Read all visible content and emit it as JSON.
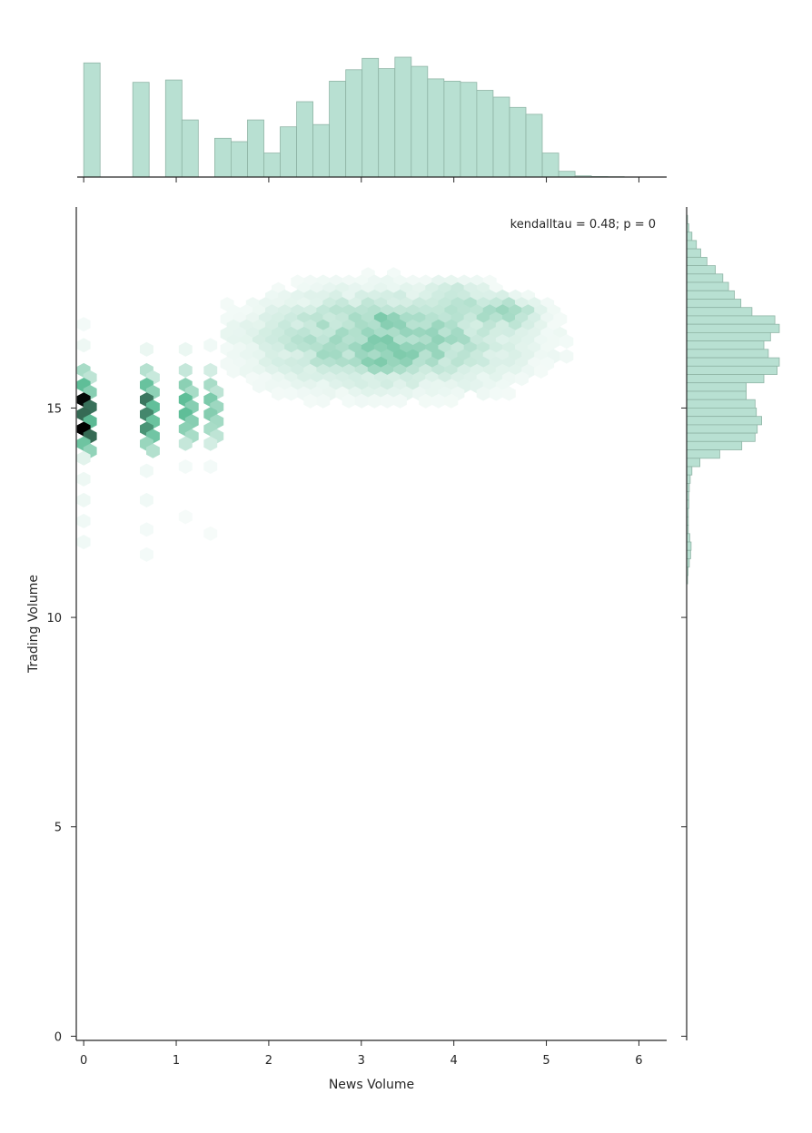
{
  "chart_data": {
    "type": "hexbin-jointplot",
    "xlabel": "News Volume",
    "ylabel": "Trading Volume",
    "annotation": "kendalltau = 0.48; p = 0",
    "xlim": [
      -0.08,
      6.3
    ],
    "ylim": [
      -0.1,
      19.8
    ],
    "xticks": [
      0,
      1,
      2,
      3,
      4,
      5,
      6
    ],
    "yticks": [
      0,
      5,
      10,
      15
    ],
    "colors": {
      "hex_base": "#5fbe98",
      "hex_dark": "#000000",
      "hist_fill": "#b8e0d2",
      "hist_edge": "#8fb5a6",
      "axis": "#262626"
    },
    "x_marginal": {
      "bin_edges": [
        0.0,
        0.177,
        0.354,
        0.531,
        0.708,
        0.885,
        1.062,
        1.239,
        1.416,
        1.593,
        1.77,
        1.947,
        2.124,
        2.301,
        2.478,
        2.655,
        2.832,
        3.009,
        3.186,
        3.363,
        3.54,
        3.717,
        3.894,
        4.071,
        4.248,
        4.425,
        4.602,
        4.779,
        4.956,
        5.133,
        5.31,
        5.487,
        5.664,
        5.841
      ],
      "counts": [
        100,
        0,
        0,
        83,
        0,
        85,
        50,
        0,
        34,
        31,
        50,
        21,
        44,
        66,
        46,
        84,
        94,
        104,
        95,
        105,
        97,
        86,
        84,
        83,
        76,
        70,
        61,
        55,
        21,
        5,
        1,
        0.5,
        0.3
      ]
    },
    "y_marginal": {
      "bins": [
        [
          19.4,
          0.2
        ],
        [
          19.2,
          0.5
        ],
        [
          19.0,
          1.2
        ],
        [
          18.8,
          2.2
        ],
        [
          18.6,
          3.2
        ],
        [
          18.4,
          4.6
        ],
        [
          18.2,
          6.5
        ],
        [
          18.0,
          8.2
        ],
        [
          17.8,
          9.5
        ],
        [
          17.6,
          10.8
        ],
        [
          17.4,
          12.3
        ],
        [
          17.2,
          14.8
        ],
        [
          17.0,
          20.0
        ],
        [
          16.8,
          21.0
        ],
        [
          16.6,
          19.0
        ],
        [
          16.4,
          17.5
        ],
        [
          16.2,
          18.5
        ],
        [
          16.0,
          21.0
        ],
        [
          15.8,
          20.5
        ],
        [
          15.6,
          17.5
        ],
        [
          15.4,
          13.5
        ],
        [
          15.2,
          13.5
        ],
        [
          15.0,
          15.5
        ],
        [
          14.8,
          15.8
        ],
        [
          14.6,
          17.0
        ],
        [
          14.4,
          16.0
        ],
        [
          14.2,
          15.5
        ],
        [
          14.0,
          12.5
        ],
        [
          13.8,
          7.5
        ],
        [
          13.6,
          3.0
        ],
        [
          13.4,
          1.2
        ],
        [
          13.2,
          0.8
        ],
        [
          13.0,
          0.6
        ],
        [
          12.8,
          0.5
        ],
        [
          12.6,
          0.5
        ],
        [
          12.4,
          0.4
        ],
        [
          12.2,
          0.4
        ],
        [
          12.0,
          0.4
        ],
        [
          11.8,
          0.7
        ],
        [
          11.6,
          1.0
        ],
        [
          11.4,
          0.9
        ],
        [
          11.2,
          0.6
        ],
        [
          11.0,
          0.3
        ],
        [
          10.8,
          0.2
        ]
      ]
    },
    "hexbin_columns": [
      {
        "x": 0.0,
        "cells": [
          [
            15.9,
            0.3
          ],
          [
            15.55,
            0.55
          ],
          [
            15.2,
            0.98
          ],
          [
            14.85,
            0.75
          ],
          [
            14.5,
            1.0
          ],
          [
            14.15,
            0.5
          ],
          [
            13.8,
            0.1
          ],
          [
            13.3,
            0.06
          ],
          [
            12.8,
            0.06
          ],
          [
            12.3,
            0.05
          ],
          [
            11.8,
            0.05
          ],
          [
            16.5,
            0.06
          ],
          [
            17.0,
            0.04
          ]
        ]
      },
      {
        "x": 0.68,
        "cells": [
          [
            15.9,
            0.25
          ],
          [
            15.55,
            0.52
          ],
          [
            15.2,
            0.72
          ],
          [
            14.85,
            0.68
          ],
          [
            14.5,
            0.65
          ],
          [
            14.15,
            0.35
          ],
          [
            13.5,
            0.05
          ],
          [
            12.8,
            0.05
          ],
          [
            12.1,
            0.04
          ],
          [
            11.5,
            0.04
          ],
          [
            16.4,
            0.07
          ]
        ]
      },
      {
        "x": 1.1,
        "cells": [
          [
            15.9,
            0.2
          ],
          [
            15.55,
            0.4
          ],
          [
            15.2,
            0.55
          ],
          [
            14.85,
            0.55
          ],
          [
            14.5,
            0.4
          ],
          [
            14.15,
            0.2
          ],
          [
            13.6,
            0.04
          ],
          [
            12.4,
            0.03
          ],
          [
            16.4,
            0.07
          ]
        ]
      },
      {
        "x": 1.37,
        "cells": [
          [
            15.9,
            0.15
          ],
          [
            15.55,
            0.3
          ],
          [
            15.2,
            0.45
          ],
          [
            14.85,
            0.42
          ],
          [
            14.5,
            0.3
          ],
          [
            14.15,
            0.15
          ],
          [
            13.6,
            0.04
          ],
          [
            16.5,
            0.05
          ],
          [
            12.0,
            0.03
          ]
        ]
      }
    ],
    "hexbin_dense": {
      "ellipse": {
        "cx": 3.3,
        "cy": 16.6,
        "rx": 1.4,
        "ry": 1.1
      },
      "peak_density": 0.38,
      "hot_spots": [
        [
          3.2,
          17.0,
          0.42
        ],
        [
          3.3,
          16.1,
          0.45
        ],
        [
          4.0,
          17.5,
          0.3
        ],
        [
          3.6,
          16.3,
          0.4
        ],
        [
          4.5,
          17.2,
          0.32
        ],
        [
          2.6,
          16.3,
          0.3
        ]
      ],
      "x_range": [
        1.55,
        5.4
      ],
      "y_range": [
        13.6,
        18.9
      ]
    }
  }
}
